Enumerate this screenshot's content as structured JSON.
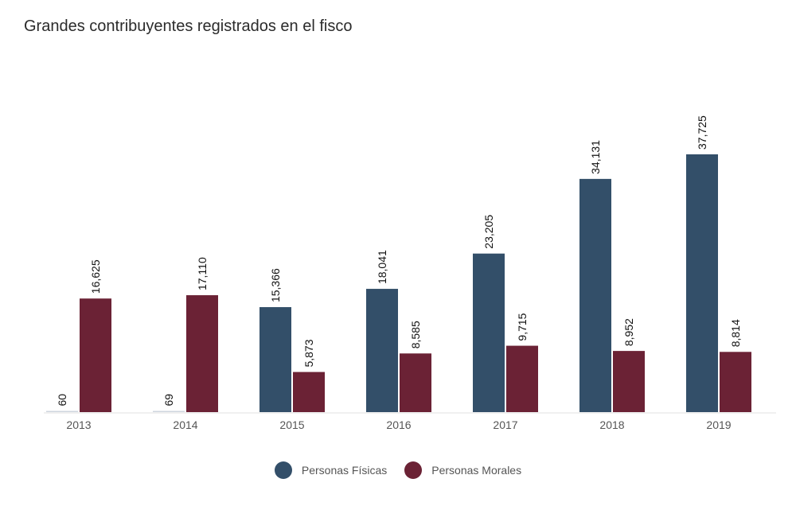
{
  "title": "Grandes contribuyentes registrados en el fisco",
  "colors": {
    "fisicas": "#334f69",
    "morales": "#6b2235"
  },
  "chart_data": {
    "type": "bar",
    "categories": [
      "2013",
      "2014",
      "2015",
      "2016",
      "2017",
      "2018",
      "2019"
    ],
    "series": [
      {
        "name": "Personas Físicas",
        "values": [
          60,
          69,
          15366,
          18041,
          23205,
          34131,
          37725
        ],
        "labels": [
          "60",
          "69",
          "15,366",
          "18,041",
          "23,205",
          "34,131",
          "37,725"
        ]
      },
      {
        "name": "Personas Morales",
        "values": [
          16625,
          17110,
          5873,
          8585,
          9715,
          8952,
          8814
        ],
        "labels": [
          "16,625",
          "17,110",
          "5,873",
          "8,585",
          "9,715",
          "8,952",
          "8,814"
        ]
      }
    ],
    "title": "Grandes contribuyentes registrados en el fisco",
    "xlabel": "",
    "ylabel": "",
    "ylim": [
      0,
      37725
    ],
    "grid": false,
    "legend": "bottom-center"
  }
}
